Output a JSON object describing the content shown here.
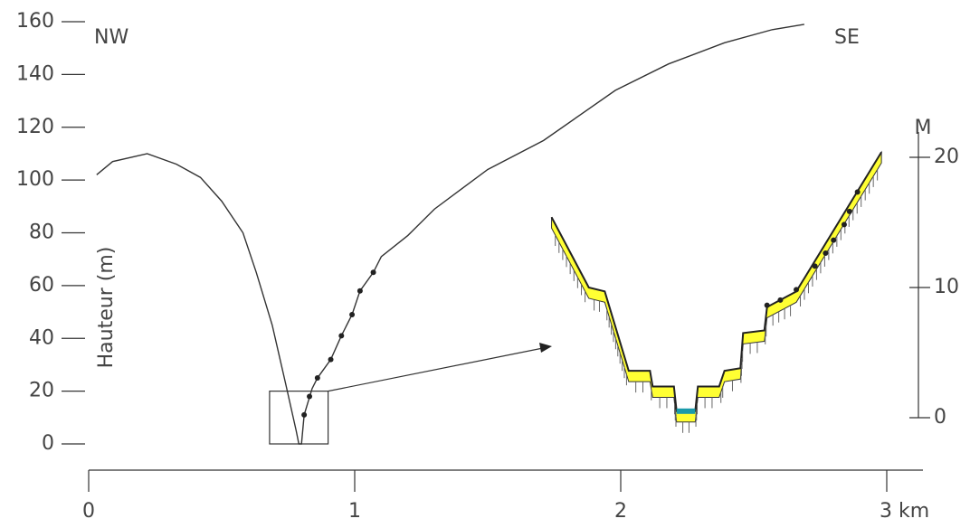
{
  "chart_data": {
    "type": "line",
    "labels": {
      "left": "NW",
      "right": "SE"
    },
    "ylabel": "Hauteur (m)",
    "y2label": "M",
    "xlim": [
      0,
      3.15
    ],
    "xticks": [
      0,
      1,
      2,
      {
        "value": 3,
        "label": "3 km"
      }
    ],
    "ylim": [
      0,
      160
    ],
    "yticks": [
      0,
      20,
      40,
      60,
      80,
      100,
      120,
      140,
      160
    ],
    "y2lim": [
      0,
      20
    ],
    "y2ticks": [
      0,
      10,
      20
    ],
    "color": "#333333",
    "profile": {
      "x": [
        0.03,
        0.09,
        0.22,
        0.33,
        0.42,
        0.5,
        0.58,
        0.63,
        0.69,
        0.74,
        0.78,
        0.79,
        0.8,
        0.81,
        0.84,
        0.86,
        0.91,
        0.95,
        0.99,
        1.02,
        1.07,
        1.1,
        1.2,
        1.3,
        1.5,
        1.71,
        1.98,
        2.18,
        2.39,
        2.57,
        2.69
      ],
      "values": [
        102,
        107,
        110,
        106,
        101,
        92,
        80,
        65,
        45,
        23,
        5,
        0,
        0,
        11,
        21,
        25,
        32,
        41,
        49,
        58,
        65,
        71,
        79,
        89,
        104,
        115,
        134,
        144,
        152,
        157,
        159
      ]
    },
    "markers": {
      "x": [
        0.81,
        0.83,
        0.86,
        0.91,
        0.95,
        0.99,
        1.02,
        1.07
      ],
      "values": [
        11,
        18,
        25,
        32,
        41,
        49,
        58,
        65
      ]
    },
    "zoom_box": {
      "xlim": [
        0.68,
        0.9
      ],
      "ylim": [
        0,
        20
      ]
    },
    "inset": {
      "axis": "y2",
      "color": "#ffff33",
      "water_color": "#1a9aaa",
      "x": [
        1.74,
        1.88,
        1.94,
        2.03,
        2.11,
        2.12,
        2.2,
        2.21,
        2.28,
        2.29,
        2.37,
        2.39,
        2.45,
        2.46,
        2.54,
        2.55,
        2.66,
        2.98
      ],
      "values": [
        15.4,
        10,
        9.7,
        3.6,
        3.6,
        2.4,
        2.4,
        0.5,
        0.5,
        2.4,
        2.4,
        3.6,
        3.8,
        6.5,
        6.7,
        8.5,
        9.7,
        20.4
      ]
    },
    "inset_markers": {
      "axis": "y2",
      "x": [
        2.55,
        2.6,
        2.66,
        2.73,
        2.77,
        2.8,
        2.84,
        2.86,
        2.89
      ],
      "values": [
        8.5,
        8.9,
        9.7,
        11.5,
        12.5,
        13.5,
        14.7,
        15.7,
        17.2
      ]
    }
  }
}
